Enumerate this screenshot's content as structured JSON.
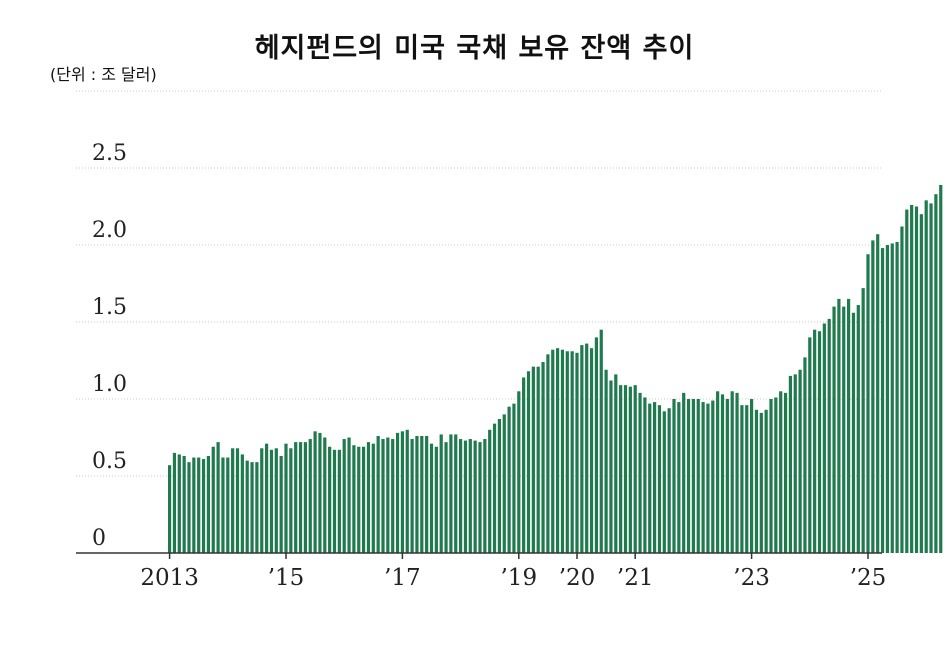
{
  "title": "헤지펀드의 미국 국채 보유 잔액 추이",
  "unit_label": "(단위 : 조 달러)",
  "chart_data": {
    "type": "bar",
    "title": "헤지펀드의 미국 국채 보유 잔액 추이",
    "ylabel": "(단위 : 조 달러)",
    "xlabel": "",
    "ylim": [
      0,
      3.0
    ],
    "yticks": [
      0,
      0.5,
      1.0,
      1.5,
      2.0,
      2.5
    ],
    "ytick_labels": [
      "0",
      "0.5",
      "1.0",
      "1.5",
      "2.0",
      "2.5"
    ],
    "xticks": [
      {
        "label": "2013",
        "index": 0
      },
      {
        "label": "’15",
        "index": 24
      },
      {
        "label": "’17",
        "index": 48
      },
      {
        "label": "’19",
        "index": 72
      },
      {
        "label": "’20",
        "index": 84
      },
      {
        "label": "’21",
        "index": 96
      },
      {
        "label": "’23",
        "index": 120
      },
      {
        "label": "’25",
        "index": 144
      }
    ],
    "grid": true,
    "bar_color": "#1f7a4d",
    "values": [
      0.57,
      0.65,
      0.64,
      0.63,
      0.59,
      0.62,
      0.62,
      0.61,
      0.63,
      0.69,
      0.72,
      0.62,
      0.62,
      0.68,
      0.68,
      0.64,
      0.6,
      0.59,
      0.59,
      0.68,
      0.71,
      0.67,
      0.68,
      0.63,
      0.71,
      0.68,
      0.72,
      0.72,
      0.72,
      0.74,
      0.79,
      0.78,
      0.75,
      0.69,
      0.67,
      0.67,
      0.74,
      0.75,
      0.7,
      0.69,
      0.69,
      0.72,
      0.71,
      0.76,
      0.74,
      0.75,
      0.74,
      0.78,
      0.79,
      0.8,
      0.74,
      0.76,
      0.76,
      0.76,
      0.71,
      0.69,
      0.77,
      0.72,
      0.77,
      0.77,
      0.74,
      0.73,
      0.74,
      0.73,
      0.72,
      0.74,
      0.8,
      0.84,
      0.87,
      0.9,
      0.95,
      0.97,
      1.05,
      1.14,
      1.18,
      1.21,
      1.21,
      1.24,
      1.29,
      1.32,
      1.33,
      1.32,
      1.31,
      1.31,
      1.3,
      1.35,
      1.36,
      1.33,
      1.4,
      1.45,
      1.19,
      1.12,
      1.16,
      1.09,
      1.09,
      1.08,
      1.09,
      1.04,
      1.01,
      0.97,
      0.98,
      0.96,
      0.92,
      0.94,
      1.0,
      0.98,
      1.04,
      1.0,
      1.0,
      1.0,
      0.98,
      0.97,
      0.99,
      1.05,
      1.03,
      1.0,
      1.05,
      1.04,
      0.96,
      0.96,
      1.0,
      0.93,
      0.91,
      0.93,
      1.0,
      1.01,
      1.05,
      1.04,
      1.15,
      1.16,
      1.19,
      1.27,
      1.4,
      1.45,
      1.44,
      1.49,
      1.52,
      1.6,
      1.65,
      1.6,
      1.65,
      1.56,
      1.61,
      1.72,
      1.94,
      2.03,
      2.07,
      1.98,
      2.0,
      2.01,
      2.02,
      2.12,
      2.23,
      2.26,
      2.25,
      2.2,
      2.29,
      2.27,
      2.33,
      2.39
    ]
  }
}
